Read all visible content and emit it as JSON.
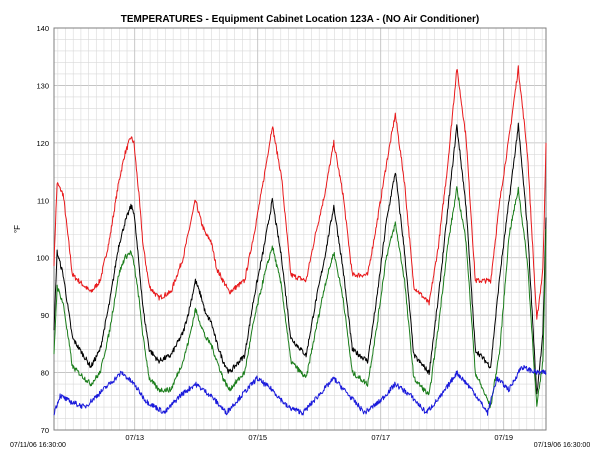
{
  "chart_data": {
    "type": "line",
    "title": "TEMPERATURES  -  Equipment Cabinet Location 123A  - (NO Air Conditioner)",
    "ylabel": "°F",
    "xlabel": "",
    "ylim": [
      70,
      140
    ],
    "yticks": [
      70,
      80,
      90,
      100,
      110,
      120,
      130,
      140
    ],
    "xlim": [
      0,
      8
    ],
    "xticks": [
      {
        "x": 1.3125,
        "label": "07/13"
      },
      {
        "x": 3.3125,
        "label": "07/15"
      },
      {
        "x": 5.3125,
        "label": "07/17"
      },
      {
        "x": 7.3125,
        "label": "07/19"
      }
    ],
    "x_start_label": "07/11/06 16:30:00",
    "x_end_label": "07/19/06 16:30:00",
    "grid": true,
    "series": [
      {
        "color": "#e8191b",
        "x": [
          0,
          0.05,
          0.15,
          0.3,
          0.6,
          0.75,
          0.9,
          1.05,
          1.15,
          1.25,
          1.3,
          1.38,
          1.45,
          1.55,
          1.7,
          1.9,
          2.1,
          2.2,
          2.3,
          2.4,
          2.47,
          2.55,
          2.65,
          2.75,
          2.85,
          3.1,
          3.25,
          3.4,
          3.55,
          3.7,
          3.85,
          4.1,
          4.25,
          4.4,
          4.55,
          4.7,
          4.85,
          5.1,
          5.25,
          5.4,
          5.55,
          5.7,
          5.85,
          6.1,
          6.25,
          6.4,
          6.55,
          6.7,
          6.85,
          7.1,
          7.25,
          7.4,
          7.55,
          7.7,
          7.85,
          7.95,
          8
        ],
        "y": [
          99,
          113,
          111,
          97,
          94,
          96,
          103,
          113,
          118,
          121,
          120,
          111,
          102,
          95,
          93,
          94,
          100,
          105,
          110,
          106,
          104,
          103,
          98,
          96,
          94,
          96,
          104,
          113,
          123,
          114,
          97,
          96,
          104,
          111,
          120,
          111,
          97,
          97,
          106,
          116,
          125,
          113,
          95,
          92,
          102,
          116,
          133,
          121,
          96,
          96,
          110,
          121,
          133,
          118,
          89,
          98,
          120
        ]
      },
      {
        "color": "#000000",
        "x": [
          0,
          0.05,
          0.15,
          0.3,
          0.6,
          0.75,
          0.9,
          1.05,
          1.15,
          1.25,
          1.3,
          1.38,
          1.45,
          1.55,
          1.7,
          1.9,
          2.1,
          2.2,
          2.3,
          2.4,
          2.47,
          2.55,
          2.65,
          2.75,
          2.85,
          3.1,
          3.25,
          3.4,
          3.55,
          3.7,
          3.85,
          4.1,
          4.25,
          4.4,
          4.55,
          4.7,
          4.85,
          5.1,
          5.25,
          5.4,
          5.55,
          5.7,
          5.85,
          6.1,
          6.25,
          6.4,
          6.55,
          6.7,
          6.85,
          7.1,
          7.25,
          7.4,
          7.55,
          7.7,
          7.85,
          7.95,
          8
        ],
        "y": [
          87,
          101,
          97,
          86,
          81,
          84,
          92,
          102,
          106,
          109,
          108,
          99,
          91,
          84,
          82,
          83,
          87,
          91,
          96,
          93,
          90,
          89,
          85,
          82,
          80,
          83,
          93,
          101,
          110,
          100,
          86,
          83,
          92,
          100,
          109,
          98,
          84,
          82,
          93,
          106,
          115,
          101,
          83,
          80,
          93,
          108,
          123,
          109,
          84,
          81,
          97,
          110,
          123,
          105,
          76,
          87,
          107
        ]
      },
      {
        "color": "#1a7d1a",
        "x": [
          0,
          0.05,
          0.15,
          0.3,
          0.6,
          0.75,
          0.9,
          1.05,
          1.15,
          1.25,
          1.3,
          1.38,
          1.45,
          1.55,
          1.7,
          1.9,
          2.1,
          2.2,
          2.3,
          2.4,
          2.47,
          2.55,
          2.65,
          2.75,
          2.85,
          3.1,
          3.25,
          3.4,
          3.55,
          3.7,
          3.85,
          4.1,
          4.25,
          4.4,
          4.55,
          4.7,
          4.85,
          5.1,
          5.25,
          5.4,
          5.55,
          5.7,
          5.85,
          6.1,
          6.25,
          6.4,
          6.55,
          6.7,
          6.85,
          7.1,
          7.25,
          7.4,
          7.55,
          7.7,
          7.85,
          7.95,
          8
        ],
        "y": [
          83,
          95,
          92,
          81,
          78,
          80,
          87,
          97,
          100,
          101,
          99,
          93,
          86,
          79,
          77,
          77,
          82,
          86,
          91,
          88,
          86,
          85,
          82,
          79,
          77,
          80,
          89,
          96,
          102,
          95,
          82,
          79,
          87,
          95,
          101,
          93,
          80,
          78,
          88,
          100,
          106,
          96,
          79,
          76,
          88,
          102,
          112,
          103,
          80,
          74,
          84,
          104,
          112,
          99,
          74,
          82,
          105
        ]
      },
      {
        "color": "#1a1adb",
        "x": [
          0,
          0.1,
          0.25,
          0.5,
          0.8,
          1.1,
          1.3,
          1.5,
          1.8,
          2.05,
          2.3,
          2.55,
          2.8,
          3.05,
          3.3,
          3.55,
          3.8,
          4.05,
          4.3,
          4.55,
          4.8,
          5.05,
          5.3,
          5.55,
          5.8,
          6.05,
          6.3,
          6.55,
          6.8,
          7.05,
          7.2,
          7.4,
          7.6,
          7.85,
          8
        ],
        "y": [
          73,
          76,
          75,
          74,
          77,
          80,
          78,
          75,
          73,
          76,
          78,
          76,
          73,
          76,
          79,
          77,
          74,
          73,
          76,
          79,
          76,
          73,
          75,
          78,
          76,
          73,
          76,
          80,
          77,
          73,
          79,
          77,
          81,
          80,
          80
        ]
      }
    ]
  }
}
